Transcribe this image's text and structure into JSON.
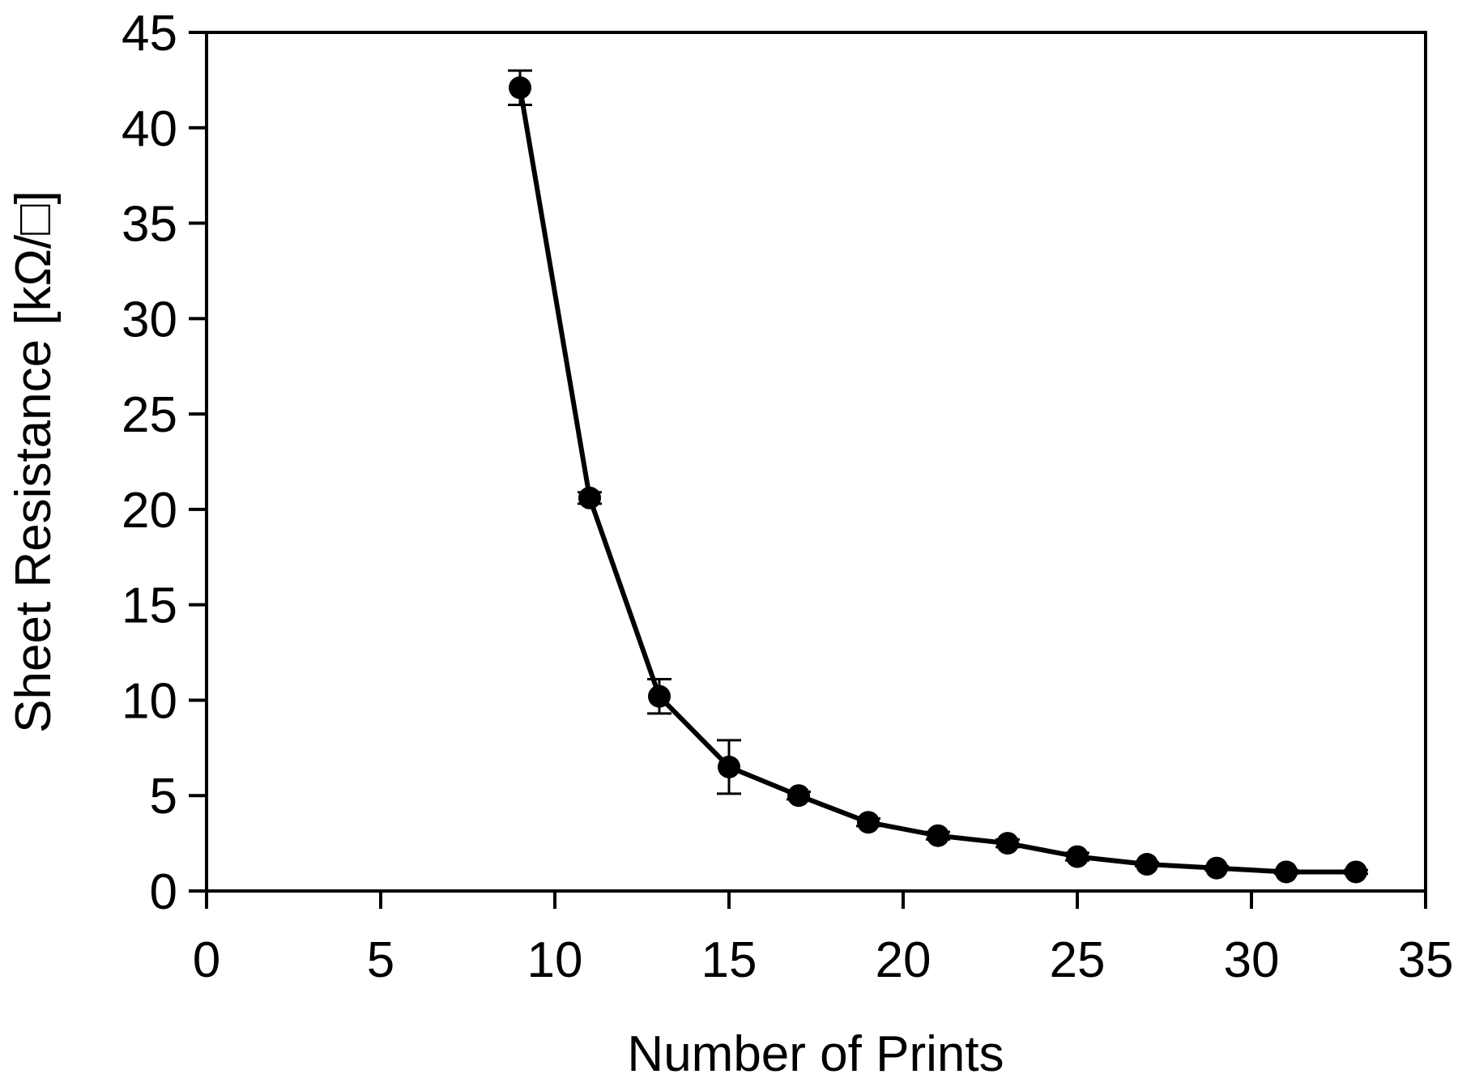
{
  "chart_data": {
    "type": "line",
    "title": "",
    "xlabel": "Number of Prints",
    "ylabel": "Sheet Resistance [kΩ/□]",
    "xlim": [
      0,
      35
    ],
    "ylim": [
      0,
      45
    ],
    "xticks": [
      "0",
      "5",
      "10",
      "15",
      "20",
      "25",
      "30",
      "35"
    ],
    "yticks": [
      "0",
      "5",
      "10",
      "15",
      "20",
      "25",
      "30",
      "35",
      "40",
      "45"
    ],
    "grid": false,
    "legend": "none",
    "series": [
      {
        "x": [
          9,
          11,
          13,
          15,
          17,
          19,
          21,
          23,
          25,
          27,
          29,
          31,
          33
        ],
        "y": [
          42.1,
          20.6,
          10.2,
          6.5,
          5.0,
          3.6,
          2.9,
          2.5,
          1.8,
          1.4,
          1.2,
          1.0,
          1.0
        ],
        "error": [
          0.9,
          0.3,
          0.9,
          1.4,
          0.2,
          0.2,
          0.2,
          0.2,
          0.2,
          0.1,
          0.1,
          0.1,
          0.1
        ]
      }
    ],
    "colors": {
      "line": "#000000",
      "marker": "#000000",
      "axis": "#000000"
    }
  }
}
